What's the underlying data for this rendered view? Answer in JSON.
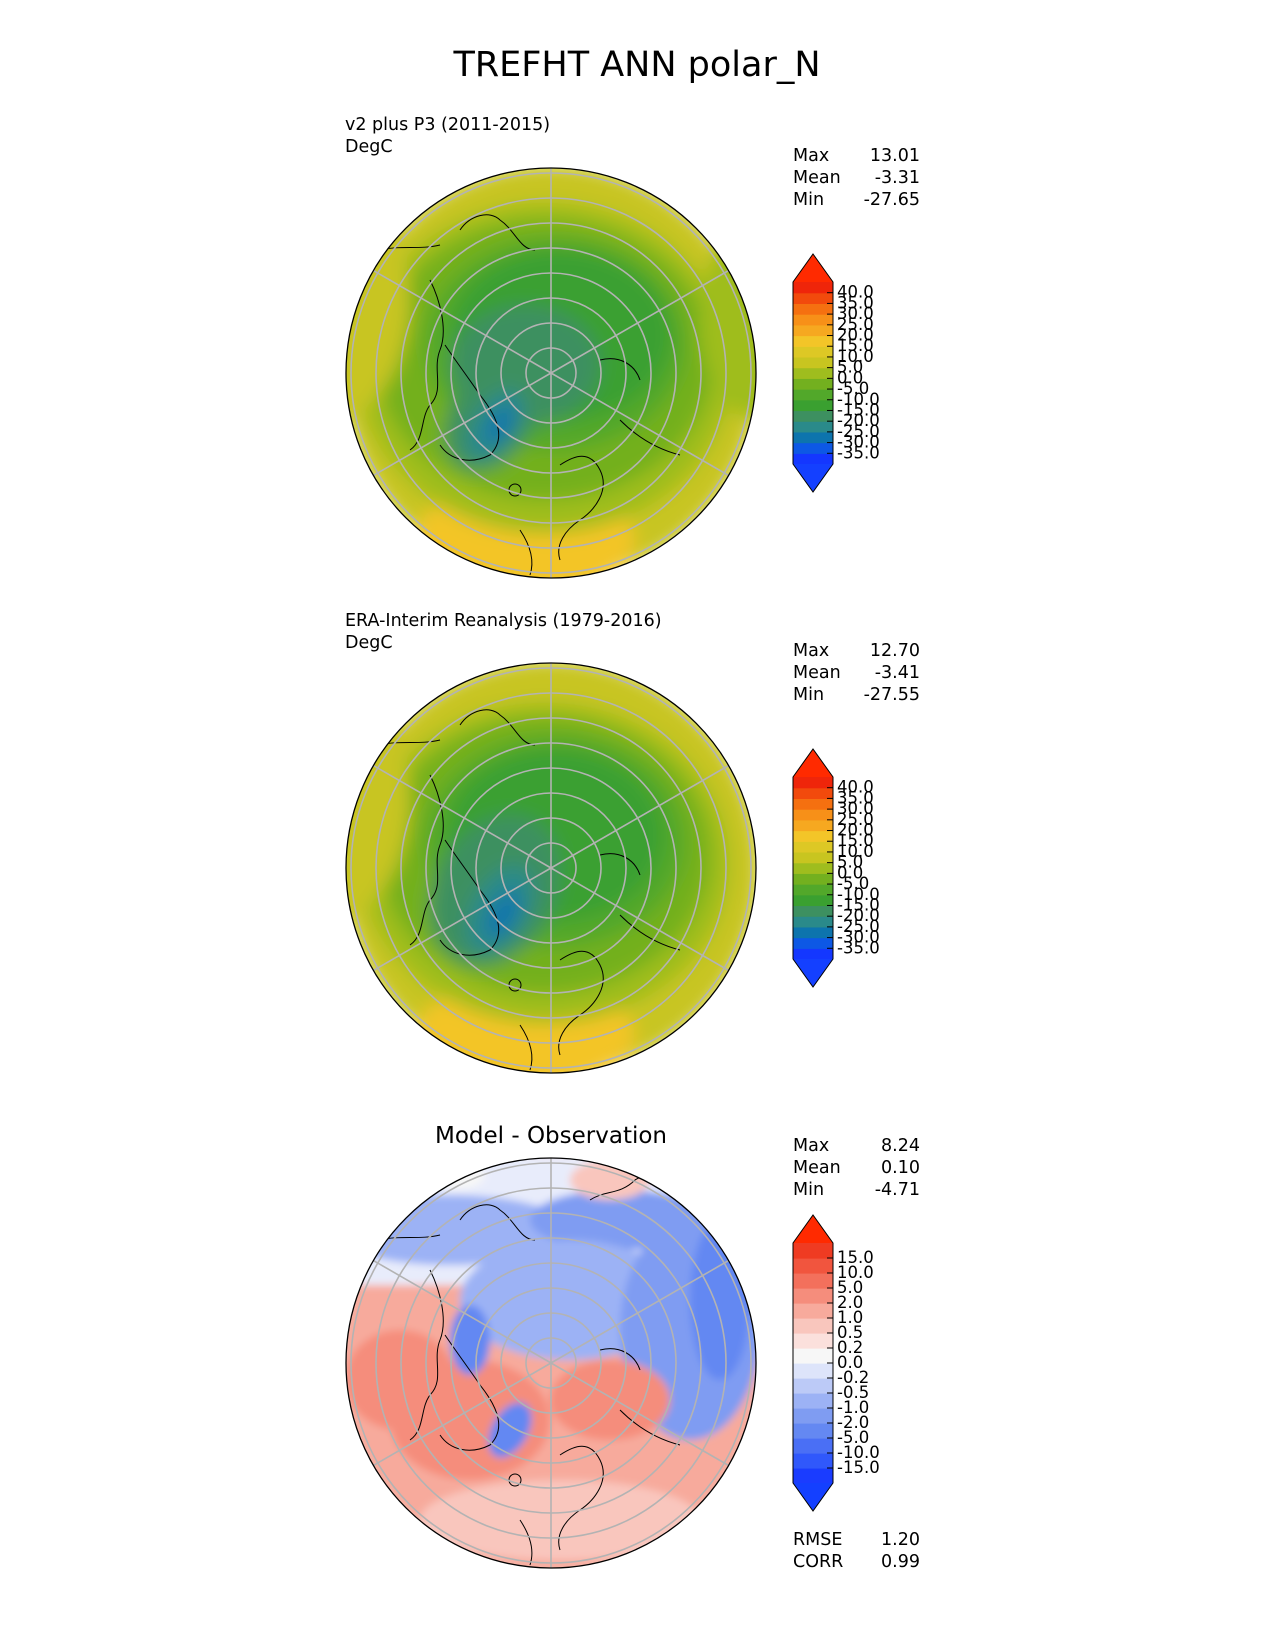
{
  "page_title": "TREFHT ANN polar_N",
  "colors": {
    "land_outline": "#000000",
    "graticule": "#b3b3b3"
  },
  "chart_data": [
    {
      "type": "heatmap",
      "projection": "north-polar-stereographic",
      "title": "",
      "subtitle": "v2 plus P3 (2011-2015)",
      "units": "DegC",
      "stats": {
        "max_label": "Max",
        "max": "13.01",
        "mean_label": "Mean",
        "mean": "-3.31",
        "min_label": "Min",
        "min": "-27.65"
      },
      "colorbar": {
        "extend": "both",
        "ticks": [
          "40.0",
          "35.0",
          "30.0",
          "25.0",
          "20.0",
          "15.0",
          "10.0",
          "5.0",
          "0.0",
          "-5.0",
          "-10.0",
          "-15.0",
          "-20.0",
          "-25.0",
          "-30.0",
          "-35.0"
        ],
        "colors": [
          "#1437ff",
          "#0d58e5",
          "#0d74ad",
          "#2a8a8a",
          "#3d9060",
          "#3aa030",
          "#52a82a",
          "#73b01f",
          "#9fbd1e",
          "#c8c520",
          "#ddc825",
          "#f3c528",
          "#f6a820",
          "#f79018",
          "#f57010",
          "#f24a0c",
          "#ef250a"
        ],
        "over_color": "#ff2a00",
        "under_color": "#1440ff"
      },
      "field_summary": {
        "pole": -18.0,
        "greenland_min": -27.65,
        "equatorward_edge": 12.0
      }
    },
    {
      "type": "heatmap",
      "projection": "north-polar-stereographic",
      "title": "",
      "subtitle": "ERA-Interim Reanalysis (1979-2016)",
      "units": "DegC",
      "stats": {
        "max_label": "Max",
        "max": "12.70",
        "mean_label": "Mean",
        "mean": "-3.41",
        "min_label": "Min",
        "min": "-27.55"
      },
      "colorbar": {
        "extend": "both",
        "ticks": [
          "40.0",
          "35.0",
          "30.0",
          "25.0",
          "20.0",
          "15.0",
          "10.0",
          "5.0",
          "0.0",
          "-5.0",
          "-10.0",
          "-15.0",
          "-20.0",
          "-25.0",
          "-30.0",
          "-35.0"
        ],
        "colors": [
          "#1437ff",
          "#0d58e5",
          "#0d74ad",
          "#2a8a8a",
          "#3d9060",
          "#3aa030",
          "#52a82a",
          "#73b01f",
          "#9fbd1e",
          "#c8c520",
          "#ddc825",
          "#f3c528",
          "#f6a820",
          "#f79018",
          "#f57010",
          "#f24a0c",
          "#ef250a"
        ],
        "over_color": "#ff2a00",
        "under_color": "#1440ff"
      },
      "field_summary": {
        "pole": -17.0,
        "greenland_min": -27.55,
        "equatorward_edge": 12.0
      }
    },
    {
      "type": "heatmap",
      "projection": "north-polar-stereographic",
      "title": "Model - Observation",
      "subtitle": "",
      "units": "",
      "stats": {
        "max_label": "Max",
        "max": "8.24",
        "mean_label": "Mean",
        "mean": "0.10",
        "min_label": "Min",
        "min": "-4.71"
      },
      "extra_stats": {
        "rmse_label": "RMSE",
        "rmse": "1.20",
        "corr_label": "CORR",
        "corr": "0.99"
      },
      "colorbar": {
        "extend": "both",
        "ticks": [
          "15.0",
          "10.0",
          "5.0",
          "2.0",
          "1.0",
          "0.5",
          "0.2",
          "0.0",
          "-0.2",
          "-0.5",
          "-1.0",
          "-2.0",
          "-5.0",
          "-10.0",
          "-15.0"
        ],
        "colors": [
          "#1a3cff",
          "#3058fb",
          "#4a6ff5",
          "#6488f2",
          "#7f9cf2",
          "#9cb2f5",
          "#bccaf7",
          "#dde4fa",
          "#f7f7f7",
          "#fbe0dc",
          "#f9c6bd",
          "#f7aa9c",
          "#f58d7c",
          "#f3705c",
          "#f1553e",
          "#ef3b22"
        ],
        "over_color": "#ff2a00",
        "under_color": "#1440ff"
      }
    }
  ]
}
